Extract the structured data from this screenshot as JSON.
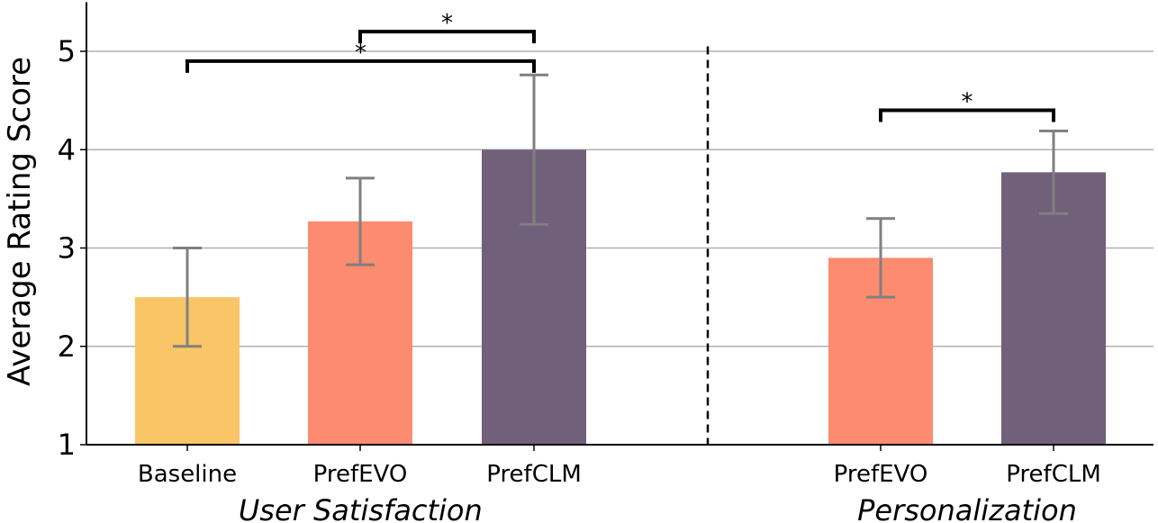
{
  "chart_data": {
    "type": "bar",
    "ylabel": "Average Rating Score",
    "ylim": [
      1,
      5.5
    ],
    "yticks": [
      "1",
      "2",
      "3",
      "4",
      "5"
    ],
    "grid": "horizontal",
    "groups": [
      {
        "label": "User Satisfaction",
        "categories": [
          "Baseline",
          "PrefEVO",
          "PrefCLM"
        ],
        "values": [
          2.5,
          3.27,
          4.0
        ],
        "err_low": [
          2.0,
          2.83,
          3.24
        ],
        "err_high": [
          3.0,
          3.71,
          4.76
        ]
      },
      {
        "label": "Personalization",
        "categories": [
          "PrefEVO",
          "PrefCLM"
        ],
        "values": [
          2.9,
          3.77
        ],
        "err_low": [
          2.5,
          3.35
        ],
        "err_high": [
          3.3,
          4.19
        ]
      }
    ],
    "significance": [
      {
        "group": 0,
        "from": 1,
        "to": 2,
        "y": 5.2,
        "label": "*"
      },
      {
        "group": 0,
        "from": 0,
        "to": 2,
        "y": 4.9,
        "label": "*"
      },
      {
        "group": 1,
        "from": 0,
        "to": 1,
        "y": 4.4,
        "label": "*"
      }
    ],
    "colors": {
      "Baseline": "#F9C566",
      "PrefEVO": "#FC8B70",
      "PrefCLM": "#716079",
      "error_bar": "#808080",
      "grid": "#b0b0b0"
    }
  }
}
